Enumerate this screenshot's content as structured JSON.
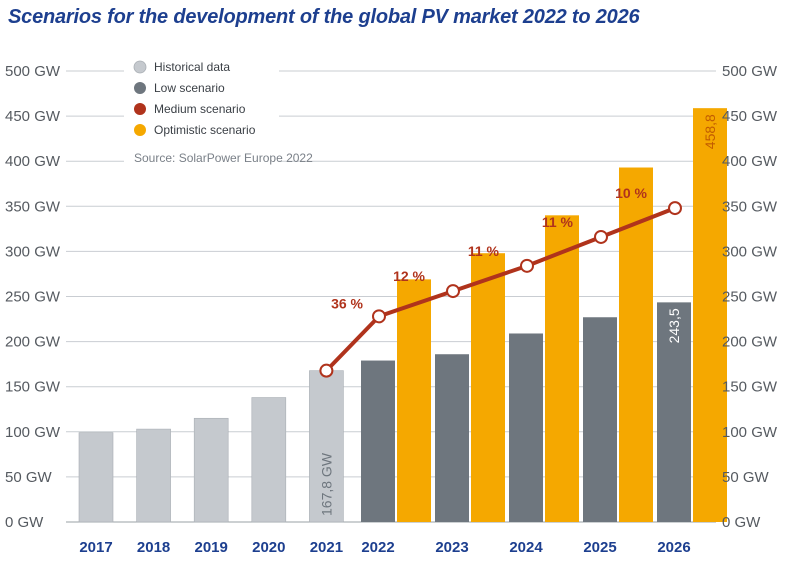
{
  "chart_data": {
    "type": "bar",
    "title": "Scenarios for the development of the global PV market 2022 to 2026",
    "source": "Source: SolarPower Europe 2022",
    "categories": [
      "2017",
      "2018",
      "2019",
      "2020",
      "2021",
      "2022",
      "2023",
      "2024",
      "2025",
      "2026"
    ],
    "unit": "GW",
    "ylim": [
      0,
      500
    ],
    "y_ticks": [
      "0 GW",
      "50 GW",
      "100 GW",
      "150 GW",
      "200 GW",
      "250 GW",
      "300 GW",
      "350 GW",
      "400 GW",
      "450 GW",
      "500 GW"
    ],
    "grid": true,
    "legend_position": "top-left",
    "legend": [
      {
        "label": "Historical data",
        "color": "#c5c9ce"
      },
      {
        "label": "Low scenario",
        "color": "#6e767e"
      },
      {
        "label": "Medium scenario",
        "color": "#b0331c"
      },
      {
        "label": "Optimistic scenario",
        "color": "#f5a800"
      }
    ],
    "series": [
      {
        "name": "Historical data",
        "kind": "bar",
        "color": "#c5c9ce",
        "values": [
          99,
          103,
          115,
          138,
          167.8,
          null,
          null,
          null,
          null,
          null
        ]
      },
      {
        "name": "Low scenario",
        "kind": "bar",
        "color": "#6e767e",
        "values": [
          null,
          null,
          null,
          null,
          null,
          179,
          186,
          209,
          227,
          243.5
        ]
      },
      {
        "name": "Optimistic scenario",
        "kind": "bar",
        "color": "#f5a800",
        "values": [
          null,
          null,
          null,
          null,
          null,
          269,
          298,
          340,
          393,
          458.8
        ]
      },
      {
        "name": "Medium scenario",
        "kind": "line",
        "color": "#b0331c",
        "values": [
          null,
          null,
          null,
          null,
          167.8,
          228,
          256,
          284,
          316,
          348
        ]
      }
    ],
    "growth_labels": [
      {
        "category": "2022",
        "text": "36 %"
      },
      {
        "category": "2023",
        "text": "12 %"
      },
      {
        "category": "2024",
        "text": "11 %"
      },
      {
        "category": "2025",
        "text": "11 %"
      },
      {
        "category": "2026",
        "text": "10 %"
      }
    ],
    "value_labels": [
      {
        "series": "Historical data",
        "category": "2021",
        "text": "167,8 GW"
      },
      {
        "series": "Low scenario",
        "category": "2026",
        "text": "243,5"
      },
      {
        "series": "Optimistic scenario",
        "category": "2026",
        "text": "458,8"
      }
    ]
  }
}
